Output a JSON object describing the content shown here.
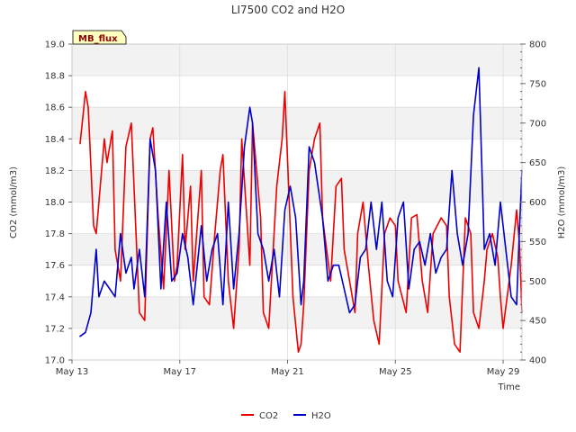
{
  "chart_data": {
    "type": "line",
    "title": "LI7500 CO2 and H2O",
    "site_label": "MB_flux",
    "xlabel": "Time",
    "ylabel_left": "CO2 (mmol/m3)",
    "ylabel_right": "H2O (mmol/m3)",
    "x_range_days": [
      13.0,
      29.7
    ],
    "x_ticks": [
      {
        "day": 13,
        "label": "May 13"
      },
      {
        "day": 17,
        "label": "May 17"
      },
      {
        "day": 21,
        "label": "May 21"
      },
      {
        "day": 25,
        "label": "May 25"
      },
      {
        "day": 29,
        "label": "May 29"
      }
    ],
    "ylim_left": [
      17.0,
      19.0
    ],
    "yticks_left": [
      "17.0",
      "17.2",
      "17.4",
      "17.6",
      "17.8",
      "18.0",
      "18.2",
      "18.4",
      "18.6",
      "18.8",
      "19.0"
    ],
    "ylim_right": [
      400,
      800
    ],
    "yticks_right": [
      "400",
      "450",
      "500",
      "550",
      "600",
      "650",
      "700",
      "750",
      "800"
    ],
    "grid": true,
    "legend_position": "bottom",
    "series": [
      {
        "name": "CO2",
        "axis": "left",
        "color": "#ee0000",
        "x": [
          13.3,
          13.5,
          13.6,
          13.8,
          13.9,
          14.2,
          14.3,
          14.5,
          14.6,
          14.8,
          15.0,
          15.2,
          15.5,
          15.7,
          15.9,
          16.0,
          16.2,
          16.4,
          16.6,
          16.8,
          16.9,
          17.1,
          17.2,
          17.4,
          17.5,
          17.8,
          17.9,
          18.1,
          18.3,
          18.5,
          18.6,
          18.8,
          19.0,
          19.2,
          19.3,
          19.6,
          19.7,
          20.0,
          20.1,
          20.3,
          20.6,
          20.8,
          20.9,
          21.2,
          21.4,
          21.5,
          21.6,
          21.8,
          22.0,
          22.2,
          22.3,
          22.6,
          22.8,
          23.0,
          23.1,
          23.5,
          23.6,
          23.8,
          24.0,
          24.2,
          24.4,
          24.6,
          24.8,
          25.0,
          25.1,
          25.4,
          25.6,
          25.8,
          26.0,
          26.2,
          26.4,
          26.7,
          26.9,
          27.0,
          27.2,
          27.4,
          27.6,
          27.8,
          27.9,
          28.1,
          28.3,
          28.4,
          28.6,
          28.8,
          28.9,
          29.0,
          29.3,
          29.5,
          29.6,
          29.7
        ],
        "y": [
          18.37,
          18.7,
          18.6,
          17.85,
          17.8,
          18.4,
          18.25,
          18.45,
          17.7,
          17.5,
          18.35,
          18.5,
          17.3,
          17.25,
          18.4,
          18.47,
          17.9,
          17.45,
          18.2,
          17.5,
          17.6,
          18.3,
          17.7,
          18.1,
          17.5,
          18.2,
          17.4,
          17.35,
          17.8,
          18.2,
          18.3,
          17.5,
          17.2,
          17.7,
          18.4,
          17.6,
          18.5,
          17.9,
          17.3,
          17.2,
          18.1,
          18.4,
          18.7,
          17.4,
          17.05,
          17.1,
          17.35,
          18.2,
          18.4,
          18.5,
          17.9,
          17.5,
          18.1,
          18.15,
          17.7,
          17.3,
          17.8,
          18.0,
          17.6,
          17.25,
          17.1,
          17.8,
          17.9,
          17.85,
          17.5,
          17.3,
          17.9,
          17.92,
          17.5,
          17.3,
          17.8,
          17.9,
          17.85,
          17.4,
          17.1,
          17.05,
          17.9,
          17.8,
          17.3,
          17.2,
          17.5,
          17.7,
          17.8,
          17.65,
          17.4,
          17.2,
          17.6,
          17.95,
          17.75,
          17.3
        ]
      },
      {
        "name": "H2O",
        "axis": "right",
        "color": "#0000cc",
        "x": [
          13.3,
          13.5,
          13.7,
          13.9,
          14.0,
          14.2,
          14.4,
          14.6,
          14.8,
          15.0,
          15.2,
          15.3,
          15.5,
          15.7,
          15.9,
          16.1,
          16.3,
          16.5,
          16.7,
          16.9,
          17.1,
          17.3,
          17.5,
          17.8,
          18.0,
          18.2,
          18.4,
          18.6,
          18.8,
          19.0,
          19.2,
          19.4,
          19.6,
          19.7,
          19.9,
          20.1,
          20.3,
          20.5,
          20.7,
          20.9,
          21.1,
          21.3,
          21.5,
          21.6,
          21.8,
          22.0,
          22.3,
          22.5,
          22.7,
          22.9,
          23.1,
          23.3,
          23.5,
          23.7,
          23.9,
          24.1,
          24.3,
          24.5,
          24.7,
          24.9,
          25.1,
          25.3,
          25.5,
          25.7,
          25.9,
          26.1,
          26.3,
          26.5,
          26.7,
          26.9,
          27.1,
          27.3,
          27.5,
          27.7,
          27.9,
          28.1,
          28.3,
          28.5,
          28.7,
          28.9,
          29.1,
          29.3,
          29.5,
          29.6,
          29.7
        ],
        "y": [
          430,
          435,
          460,
          540,
          480,
          500,
          490,
          480,
          560,
          510,
          530,
          490,
          540,
          480,
          680,
          640,
          490,
          600,
          500,
          510,
          560,
          530,
          470,
          570,
          500,
          540,
          560,
          470,
          600,
          490,
          560,
          670,
          720,
          700,
          560,
          540,
          500,
          540,
          480,
          590,
          620,
          580,
          470,
          500,
          670,
          650,
          580,
          500,
          520,
          520,
          490,
          460,
          470,
          530,
          540,
          600,
          540,
          600,
          500,
          480,
          580,
          600,
          490,
          540,
          550,
          520,
          560,
          510,
          530,
          540,
          640,
          560,
          520,
          560,
          710,
          770,
          540,
          560,
          520,
          600,
          540,
          480,
          470,
          560,
          640
        ]
      }
    ]
  }
}
